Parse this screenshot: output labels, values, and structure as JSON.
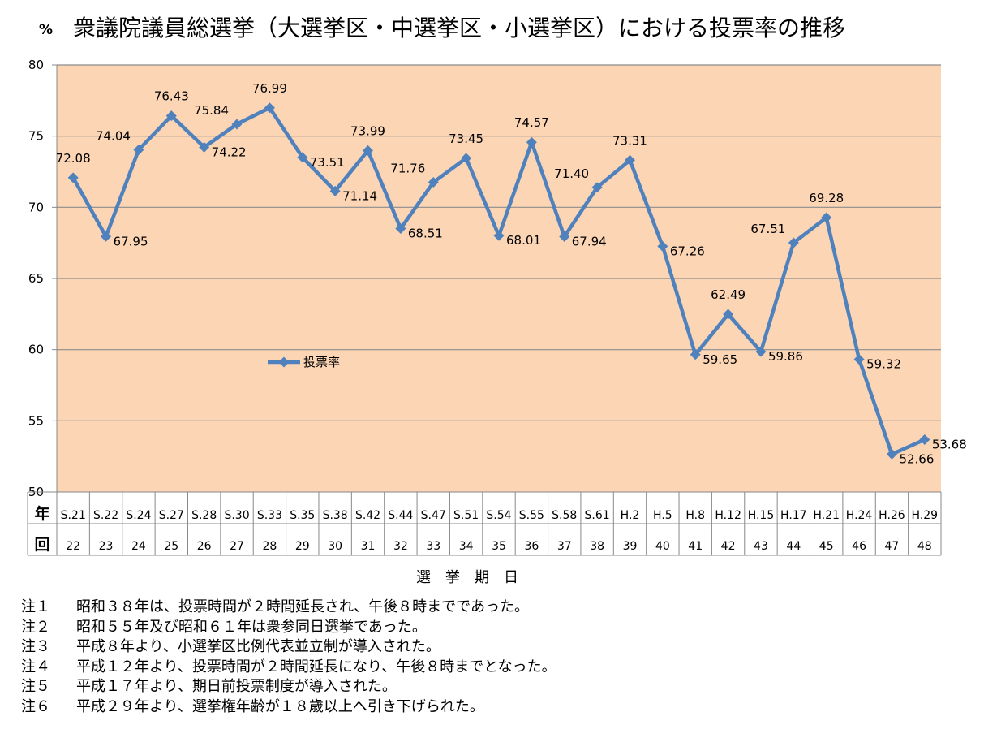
{
  "chart_data": {
    "type": "line",
    "title_unit": "%",
    "title": "衆議院議員総選挙（大選挙区・中選挙区・小選挙区）における投票率の推移",
    "xlabel": "選　挙　期　日",
    "row_headers": {
      "year": "年",
      "session": "回"
    },
    "ylim": [
      50,
      80
    ],
    "yticks": [
      "50",
      "55",
      "60",
      "65",
      "70",
      "75",
      "80"
    ],
    "grid": true,
    "legend_position": "center-left",
    "colors": {
      "line": "#4f81bd",
      "plot_bg": "#fcd5b5",
      "grid": "#8c8c8c"
    },
    "categories": [
      "S.21",
      "S.22",
      "S.24",
      "S.27",
      "S.28",
      "S.30",
      "S.33",
      "S.35",
      "S.38",
      "S.42",
      "S.44",
      "S.47",
      "S.51",
      "S.54",
      "S.55",
      "S.58",
      "S.61",
      "H.2",
      "H.5",
      "H.8",
      "H.12",
      "H.15",
      "H.17",
      "H.21",
      "H.24",
      "H.26",
      "H.29"
    ],
    "sessions": [
      "22",
      "23",
      "24",
      "25",
      "26",
      "27",
      "28",
      "29",
      "30",
      "31",
      "32",
      "33",
      "34",
      "35",
      "36",
      "37",
      "38",
      "39",
      "40",
      "41",
      "42",
      "43",
      "44",
      "45",
      "46",
      "47",
      "48"
    ],
    "series": [
      {
        "name": "投票率",
        "values": [
          72.08,
          67.95,
          74.04,
          76.43,
          74.22,
          75.84,
          76.99,
          73.51,
          71.14,
          73.99,
          68.51,
          71.76,
          73.45,
          68.01,
          74.57,
          67.94,
          71.4,
          73.31,
          67.26,
          59.65,
          62.49,
          59.86,
          67.51,
          69.28,
          59.32,
          52.66,
          53.68
        ],
        "labels": [
          "72.08",
          "67.95",
          "74.04",
          "76.43",
          "74.22",
          "75.84",
          "76.99",
          "73.51",
          "71.14",
          "73.99",
          "68.51",
          "71.76",
          "73.45",
          "68.01",
          "74.57",
          "67.94",
          "71.40",
          "73.31",
          "67.26",
          "59.65",
          "62.49",
          "59.86",
          "67.51",
          "69.28",
          "59.32",
          "52.66",
          "53.68"
        ]
      }
    ]
  },
  "notes": [
    {
      "label": "注１",
      "text": "昭和３８年は、投票時間が２時間延長され、午後８時までであった。"
    },
    {
      "label": "注２",
      "text": "昭和５５年及び昭和６１年は衆参同日選挙であった。"
    },
    {
      "label": "注３",
      "text": "平成８年より、小選挙区比例代表並立制が導入された。"
    },
    {
      "label": "注４",
      "text": "平成１２年より、投票時間が２時間延長になり、午後８時までとなった。"
    },
    {
      "label": "注５",
      "text": "平成１７年より、期日前投票制度が導入された。"
    },
    {
      "label": "注６",
      "text": "平成２９年より、選挙権年齢が１８歳以上へ引き下げられた。"
    }
  ]
}
